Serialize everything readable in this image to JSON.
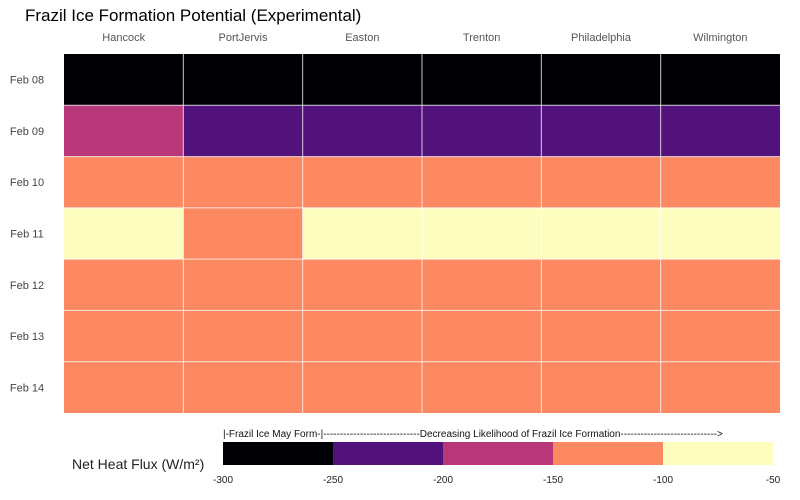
{
  "chart_data": {
    "type": "heatmap",
    "title": "Frazil Ice Formation Potential (Experimental)",
    "columns": [
      "Hancock",
      "PortJervis",
      "Easton",
      "Trenton",
      "Philadelphia",
      "Wilmington"
    ],
    "rows": [
      "Feb 08",
      "Feb 09",
      "Feb 10",
      "Feb 11",
      "Feb 12",
      "Feb 13",
      "Feb 14"
    ],
    "values": [
      [
        -275,
        -275,
        -275,
        -275,
        -275,
        -275
      ],
      [
        -175,
        -225,
        -225,
        -225,
        -225,
        -225
      ],
      [
        -125,
        -125,
        -125,
        -125,
        -125,
        -125
      ],
      [
        -75,
        -125,
        -75,
        -75,
        -75,
        -75
      ],
      [
        -125,
        -125,
        -125,
        -125,
        -125,
        -125
      ],
      [
        -125,
        -125,
        -125,
        -125,
        -125,
        -125
      ],
      [
        -125,
        -125,
        -125,
        -125,
        -125,
        -125
      ]
    ],
    "legend": {
      "title": "Net Heat Flux (W/m²)",
      "caption": "|-Frazil Ice May Form-|-----------------------------Decreasing Likelihood of Frazil Ice Formation----------------------------->",
      "ticks": [
        "-300",
        "-250",
        "-200",
        "-150",
        "-100",
        "-50"
      ],
      "bins": [
        {
          "min": -300,
          "max": -250,
          "color": "#000004"
        },
        {
          "min": -250,
          "max": -200,
          "color": "#51127c"
        },
        {
          "min": -200,
          "max": -150,
          "color": "#b73779"
        },
        {
          "min": -150,
          "max": -100,
          "color": "#fc8961"
        },
        {
          "min": -100,
          "max": -50,
          "color": "#fcfdbf"
        }
      ]
    }
  }
}
